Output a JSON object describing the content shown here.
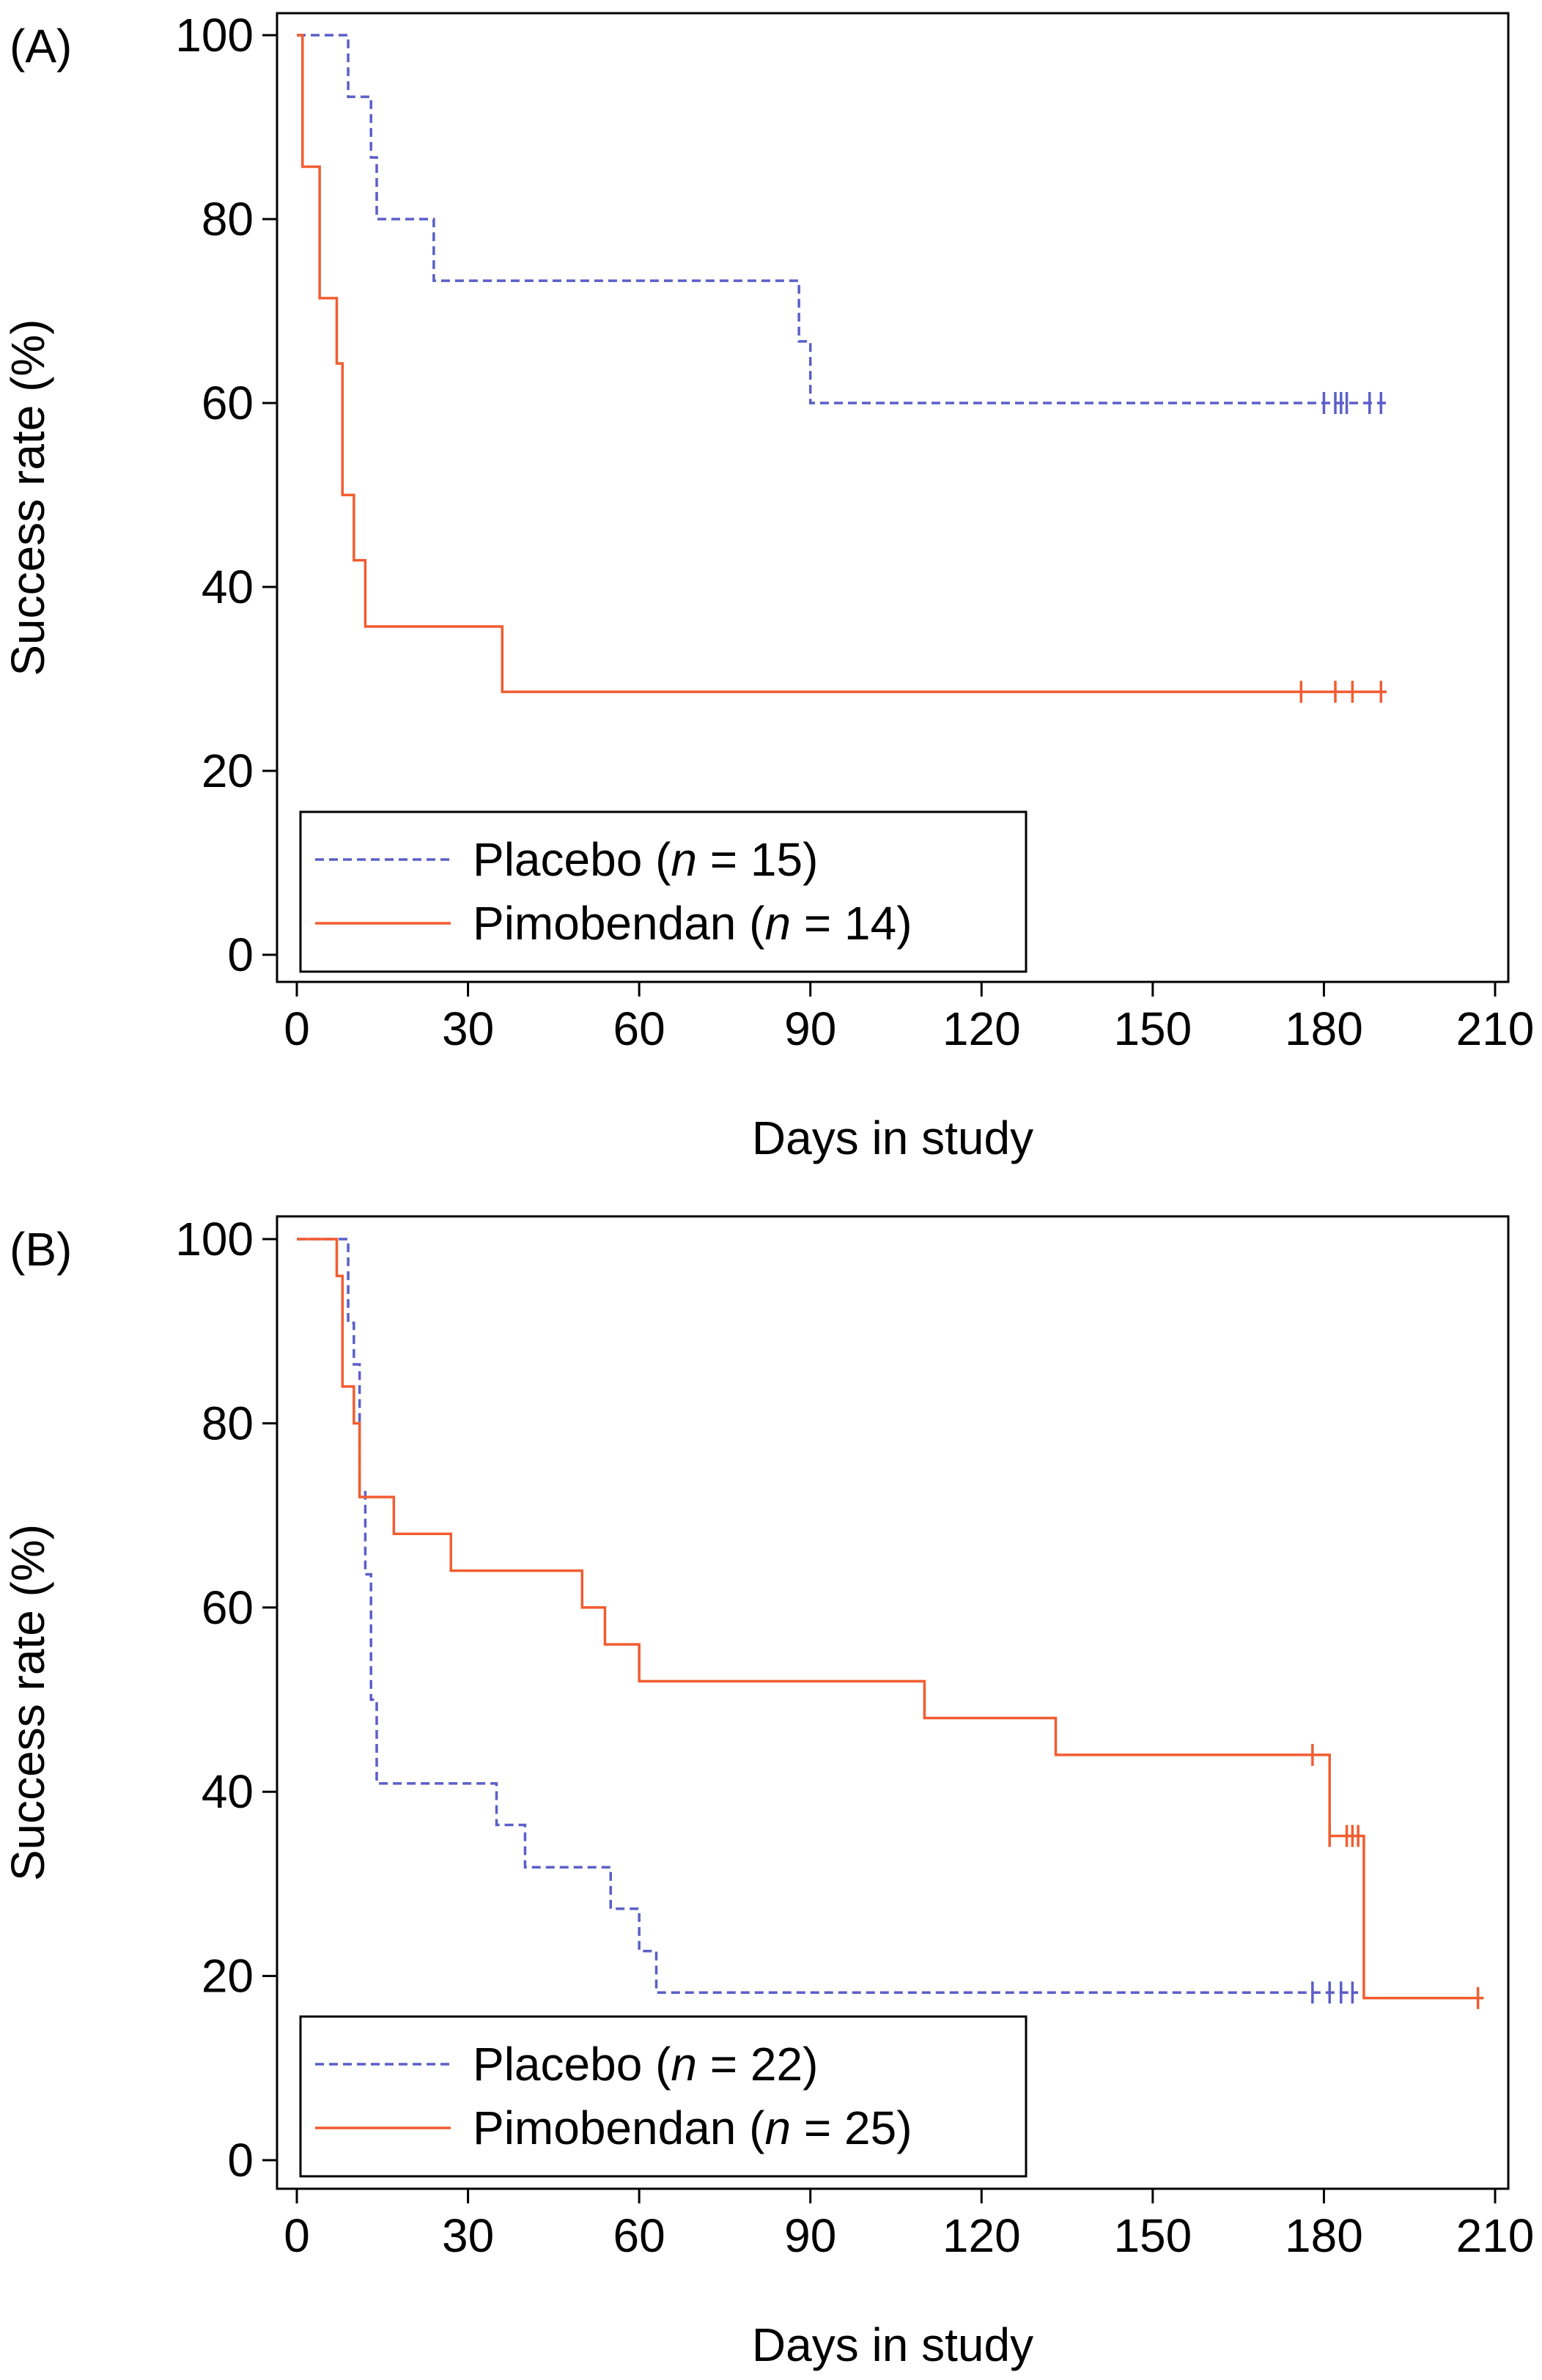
{
  "chart_data": [
    {
      "type": "line",
      "panel_label": "(A)",
      "xlabel": "Days in study",
      "ylabel": "Success rate (%)",
      "xlim": [
        0,
        210
      ],
      "ylim": [
        0,
        100
      ],
      "xticks": [
        0,
        30,
        60,
        90,
        120,
        150,
        180,
        210
      ],
      "yticks": [
        0,
        20,
        40,
        60,
        80,
        100
      ],
      "grid": false,
      "legend_position": "bottom-left",
      "series": [
        {
          "name": "Placebo (n = 15)",
          "legend_prefix": "Placebo (",
          "legend_italic": "n",
          "legend_suffix": " = 15)",
          "style": "dashed",
          "color": "#5b5fc7",
          "steps": [
            [
              0,
              100
            ],
            [
              9,
              93.3
            ],
            [
              13,
              86.7
            ],
            [
              14,
              80
            ],
            [
              24,
              73.3
            ],
            [
              88,
              66.7
            ],
            [
              90,
              60
            ]
          ],
          "end_x": 191,
          "censored": [
            180,
            182,
            183,
            184,
            188,
            190
          ]
        },
        {
          "name": "Pimobendan (n = 14)",
          "legend_prefix": "Pimobendan (",
          "legend_italic": "n",
          "legend_suffix": " = 14)",
          "style": "solid",
          "color": "#f25c30",
          "steps": [
            [
              0,
              100
            ],
            [
              1,
              85.7
            ],
            [
              4,
              71.4
            ],
            [
              7,
              64.3
            ],
            [
              8,
              50
            ],
            [
              10,
              42.9
            ],
            [
              12,
              35.7
            ],
            [
              36,
              28.6
            ]
          ],
          "end_x": 191,
          "censored": [
            176,
            182,
            185,
            190
          ]
        }
      ]
    },
    {
      "type": "line",
      "panel_label": "(B)",
      "xlabel": "Days in study",
      "ylabel": "Success rate (%)",
      "xlim": [
        0,
        210
      ],
      "ylim": [
        0,
        100
      ],
      "xticks": [
        0,
        30,
        60,
        90,
        120,
        150,
        180,
        210
      ],
      "yticks": [
        0,
        20,
        40,
        60,
        80,
        100
      ],
      "grid": false,
      "legend_position": "bottom-left",
      "series": [
        {
          "name": "Placebo (n = 22)",
          "legend_prefix": "Placebo (",
          "legend_italic": "n",
          "legend_suffix": " = 22)",
          "style": "dashed",
          "color": "#5b5fc7",
          "steps": [
            [
              0,
              100
            ],
            [
              9,
              90.9
            ],
            [
              10,
              86.4
            ],
            [
              11,
              72.7
            ],
            [
              12,
              63.6
            ],
            [
              13,
              50
            ],
            [
              14,
              40.9
            ],
            [
              35,
              36.4
            ],
            [
              40,
              31.8
            ],
            [
              55,
              27.3
            ],
            [
              60,
              22.7
            ],
            [
              63,
              18.2
            ]
          ],
          "end_x": 186,
          "censored": [
            178,
            181,
            183,
            185
          ]
        },
        {
          "name": "Pimobendan (n = 25)",
          "legend_prefix": "Pimobendan (",
          "legend_italic": "n",
          "legend_suffix": " = 25)",
          "style": "solid",
          "color": "#f25c30",
          "steps": [
            [
              0,
              100
            ],
            [
              7,
              96
            ],
            [
              8,
              84
            ],
            [
              10,
              80
            ],
            [
              11,
              72
            ],
            [
              17,
              68
            ],
            [
              27,
              64
            ],
            [
              50,
              60
            ],
            [
              54,
              56
            ],
            [
              60,
              52
            ],
            [
              110,
              48
            ],
            [
              133,
              44
            ],
            [
              181,
              35.2
            ],
            [
              187,
              17.6
            ]
          ],
          "end_x": 208,
          "censored": [
            178,
            181,
            184,
            185,
            186,
            207
          ]
        }
      ]
    }
  ]
}
